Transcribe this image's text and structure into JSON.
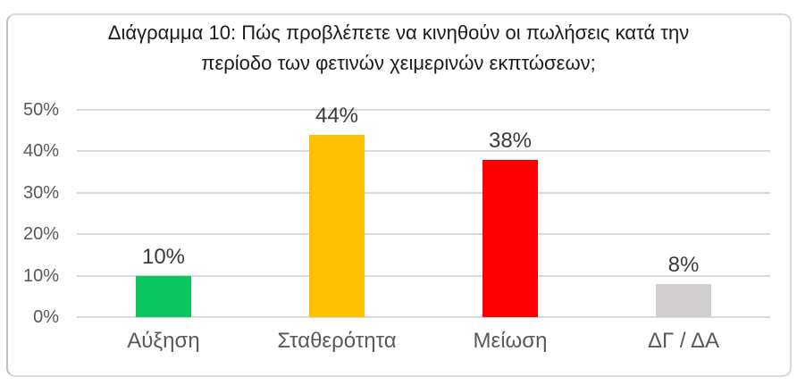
{
  "chart_data": {
    "type": "bar",
    "title": "Διάγραμμα 10: Πώς προβλέπετε να κινηθούν οι πωλήσεις κατά την περίοδο των φετινών χειμερινών εκπτώσεων;",
    "title_lines": [
      "Διάγραμμα 10: Πώς προβλέπετε να κινηθούν οι πωλήσεις κατά την",
      "περίοδο των φετινών χειμερινών εκπτώσεων;"
    ],
    "categories": [
      "Αύξηση",
      "Σταθερότητα",
      "Μείωση",
      "ΔΓ / ΔΑ"
    ],
    "values": [
      10,
      44,
      38,
      8
    ],
    "value_labels": [
      "10%",
      "44%",
      "38%",
      "8%"
    ],
    "bar_colors": [
      "#0AC661",
      "#FFC000",
      "#FF0000",
      "#D0CECE"
    ],
    "y_axis": {
      "ticks": [
        0,
        10,
        20,
        30,
        40,
        50
      ],
      "tick_labels": [
        "0%",
        "10%",
        "20%",
        "30%",
        "40%",
        "50%"
      ],
      "range": [
        0,
        50
      ]
    },
    "xlabel": "",
    "ylabel": "",
    "grid": true,
    "legend": "none"
  },
  "style": {
    "grid_color": "#D9D9D9",
    "frame_border_color": "#D9D9D9",
    "axis_text_color": "#595959",
    "value_label_color": "#3B3B3B",
    "title_color": "#1C1C1C",
    "background": "#FFFFFF"
  }
}
